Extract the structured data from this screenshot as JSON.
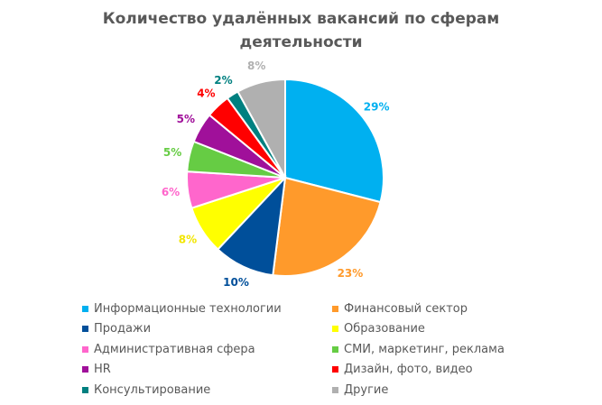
{
  "chart_data": {
    "type": "pie",
    "title": "Количество удалённых вакансий по сферам деятельности",
    "title_lines": [
      "Количество удалённых вакансий по сферам",
      "деятельности"
    ],
    "categories": [
      "Информационные технологии",
      "Финансовый сектор",
      "Продажи",
      "Образование",
      "Административная сфера",
      "СМИ, маркетинг, реклама",
      "HR",
      "Дизайн, фото, видео",
      "Консультирование",
      "Другие"
    ],
    "values": [
      29,
      23,
      10,
      8,
      6,
      5,
      5,
      4,
      2,
      8
    ],
    "value_labels": [
      "29%",
      "23%",
      "10%",
      "8%",
      "6%",
      "5%",
      "5%",
      "4%",
      "2%",
      "8%"
    ],
    "colors": [
      "#00B0F0",
      "#FF9A2B",
      "#004F9A",
      "#FFFF00",
      "#FF66CC",
      "#66CC44",
      "#A0109A",
      "#FF0000",
      "#008080",
      "#B0B0B0"
    ],
    "legend_position": "bottom",
    "start_angle_deg": 0,
    "direction": "clockwise"
  },
  "legend": {
    "items": [
      {
        "label": "Информационные технологии",
        "color": "#00B0F0"
      },
      {
        "label": "Финансовый сектор",
        "color": "#FF9A2B"
      },
      {
        "label": "Продажи",
        "color": "#004F9A"
      },
      {
        "label": "Образование",
        "color": "#FFFF00"
      },
      {
        "label": "Административная сфера",
        "color": "#FF66CC"
      },
      {
        "label": "СМИ, маркетинг, реклама",
        "color": "#66CC44"
      },
      {
        "label": "HR",
        "color": "#A0109A"
      },
      {
        "label": "Дизайн, фото, видео",
        "color": "#FF0000"
      },
      {
        "label": "Консультирование",
        "color": "#008080"
      },
      {
        "label": "Другие",
        "color": "#B0B0B0"
      }
    ]
  }
}
